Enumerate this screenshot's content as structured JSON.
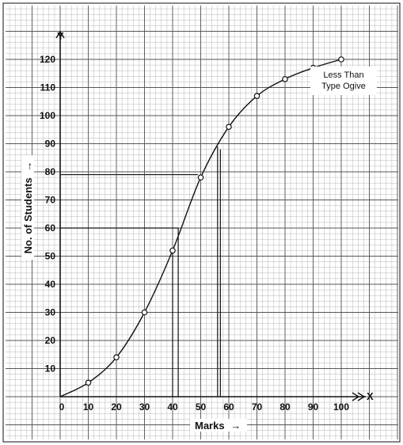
{
  "chart_data": {
    "type": "line",
    "x": [
      0,
      10,
      20,
      30,
      40,
      50,
      60,
      70,
      80,
      90,
      100
    ],
    "series": [
      {
        "name": "Less Than Type Ogive",
        "values": [
          0,
          5,
          14,
          30,
          52,
          78,
          96,
          107,
          113,
          117,
          120
        ]
      }
    ],
    "xlabel": "Marks",
    "ylabel": "No. of Students",
    "x_arrow": "→",
    "y_arrow": "→",
    "xlim": [
      0,
      100
    ],
    "ylim": [
      0,
      120
    ],
    "xticks": [
      0,
      10,
      20,
      30,
      40,
      50,
      60,
      70,
      80,
      90,
      100
    ],
    "yticks": [
      10,
      20,
      30,
      40,
      50,
      60,
      70,
      80,
      90,
      100,
      110,
      120
    ],
    "legend_lines": [
      "Less Than",
      "Type Ogive"
    ],
    "legend_position": "top-right",
    "grid": true,
    "annotations": {
      "horizontal_lines_at_y": [
        60,
        79
      ],
      "vertical_lines_at_x": [
        40,
        42,
        56,
        57
      ]
    },
    "axis_end_marks": {
      "x": "X",
      "y": "Y"
    }
  }
}
